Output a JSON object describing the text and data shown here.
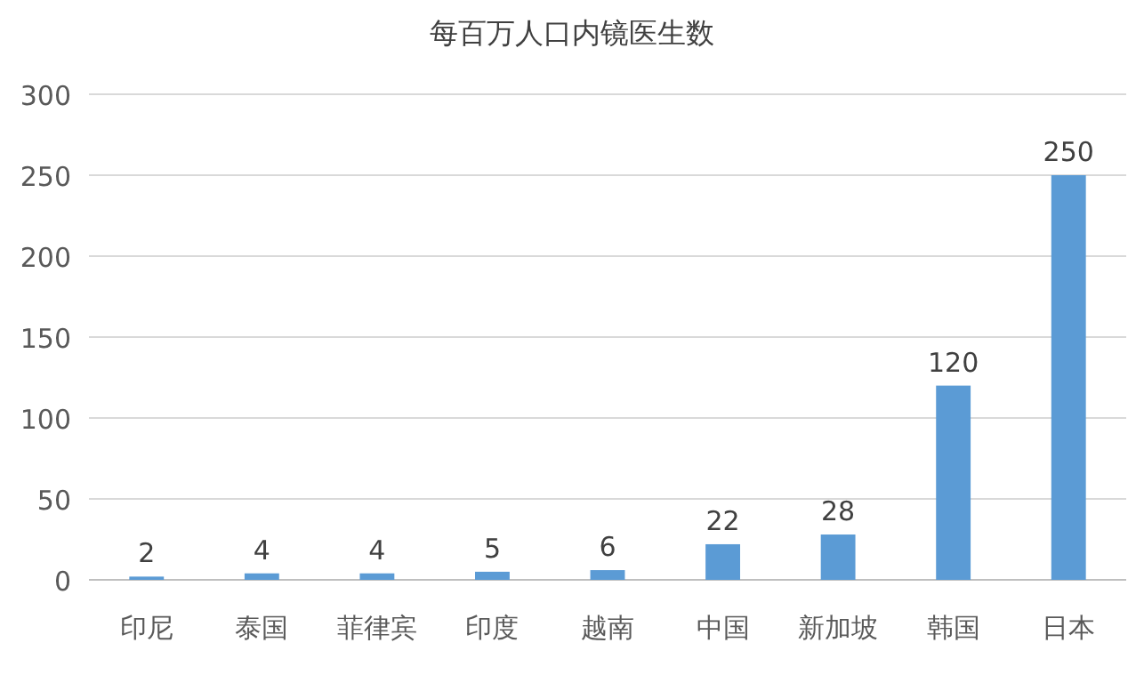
{
  "chart_data": {
    "type": "bar",
    "title": "每百万人口内镜医生数",
    "categories": [
      "印尼",
      "泰国",
      "菲律宾",
      "印度",
      "越南",
      "中国",
      "新加坡",
      "韩国",
      "日本"
    ],
    "values": [
      2,
      4,
      4,
      5,
      6,
      22,
      28,
      120,
      250
    ],
    "color": "#5b9bd5",
    "ylim": [
      0,
      300
    ],
    "yticks": [
      0,
      50,
      100,
      150,
      200,
      250,
      300
    ],
    "grid": "y",
    "data_labels": true
  }
}
